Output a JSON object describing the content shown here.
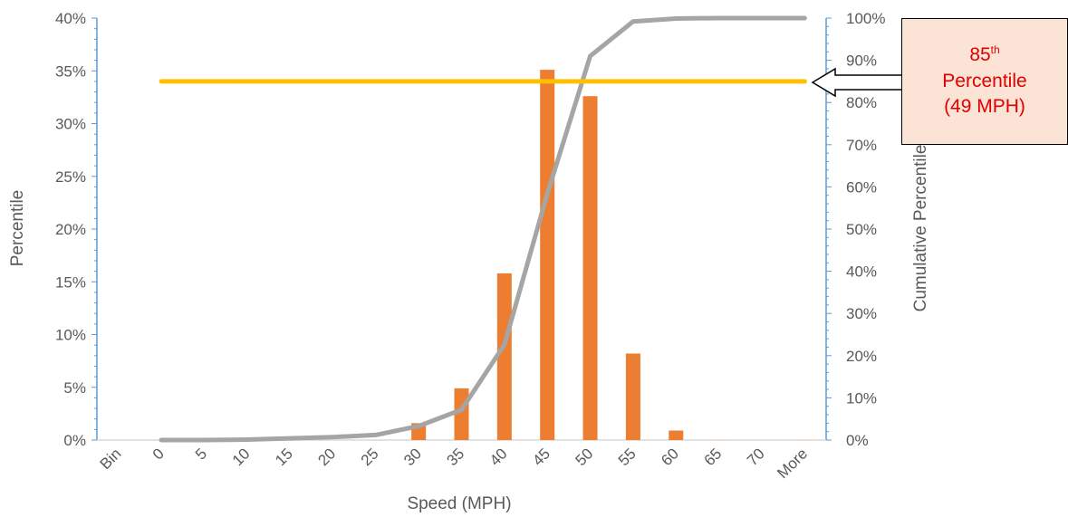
{
  "chart_data": {
    "type": "bar",
    "categories": [
      "Bin",
      "0",
      "5",
      "10",
      "15",
      "20",
      "25",
      "30",
      "35",
      "40",
      "45",
      "50",
      "55",
      "60",
      "65",
      "70",
      "More"
    ],
    "xlabel": "Speed (MPH)",
    "ylabel": "Percentile",
    "y2label": "Cumulative Percentile",
    "ylim": [
      0,
      40
    ],
    "y2lim": [
      0,
      100
    ],
    "yticks": [
      "0%",
      "5%",
      "10%",
      "15%",
      "20%",
      "25%",
      "30%",
      "35%",
      "40%"
    ],
    "y2ticks": [
      "0%",
      "10%",
      "20%",
      "30%",
      "40%",
      "50%",
      "60%",
      "70%",
      "80%",
      "90%",
      "100%"
    ],
    "series": [
      {
        "type": "bar",
        "axis": "left",
        "values": [
          null,
          0,
          0,
          0,
          0,
          0,
          0,
          1.6,
          4.9,
          15.8,
          35.1,
          32.6,
          8.2,
          0.9,
          0.05,
          0,
          0.05
        ]
      },
      {
        "type": "line",
        "axis": "right",
        "values": [
          null,
          0,
          0,
          0.1,
          0.4,
          0.7,
          1.2,
          3.3,
          7.2,
          22.6,
          58.4,
          91.0,
          99.2,
          99.9,
          100,
          100,
          100
        ]
      },
      {
        "type": "hline",
        "axis": "right",
        "value": 85
      }
    ],
    "colors": {
      "bars": "#ed7d31",
      "line": "#a5a5a5",
      "threshold": "#ffc000",
      "right_axis": "#5b9bd5"
    },
    "grid": false,
    "legend": "none"
  },
  "callout": {
    "sup_base": "85",
    "sup_text": "th",
    "line2": "Percentile",
    "line3": "(49 MPH)",
    "colors": {
      "text": "#e00000",
      "fill": "#fbe3d6",
      "border": "#000000"
    }
  }
}
